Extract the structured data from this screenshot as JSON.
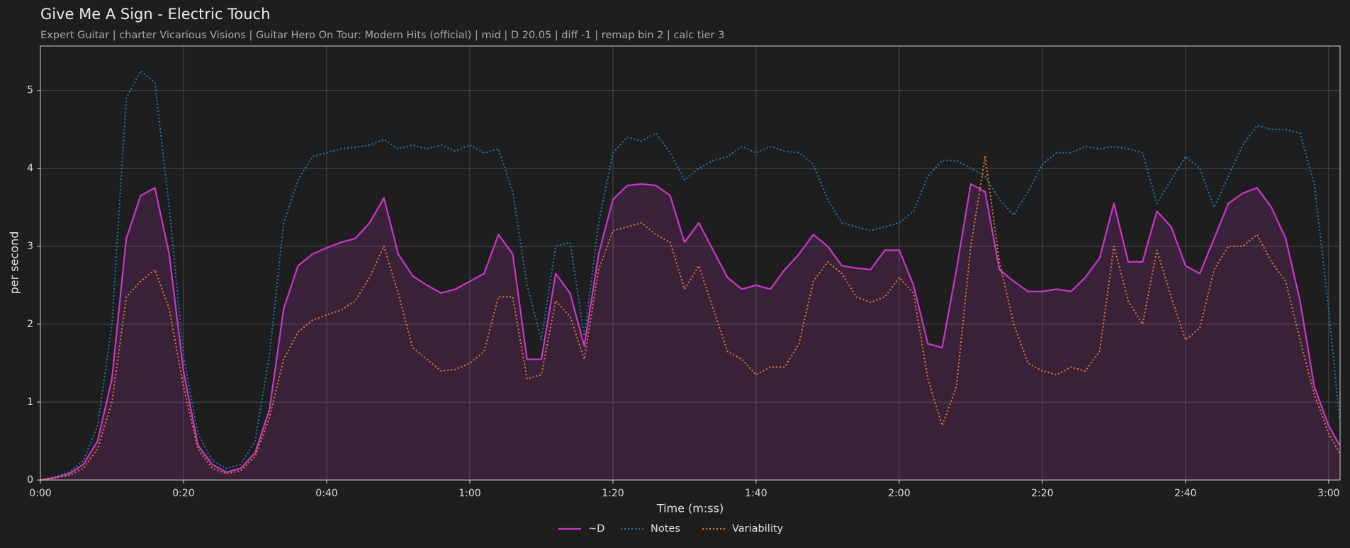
{
  "chart_data": {
    "type": "line",
    "title": "Give Me A Sign - Electric Touch",
    "subtitle": "Expert Guitar  |  charter Vicarious Visions  |  Guitar Hero On Tour: Modern Hits (official)  |  mid  |  D 20.05  |  diff -1  |  remap bin 2  |  calc tier 3",
    "x_label": "Time (m:ss)",
    "y_label": "per second",
    "x": [
      0,
      2,
      4,
      6,
      8,
      10,
      12,
      14,
      16,
      18,
      20,
      22,
      24,
      26,
      28,
      30,
      32,
      34,
      36,
      38,
      40,
      42,
      44,
      46,
      48,
      50,
      52,
      54,
      56,
      58,
      60,
      62,
      64,
      66,
      68,
      70,
      72,
      74,
      76,
      78,
      80,
      82,
      84,
      86,
      88,
      90,
      92,
      94,
      96,
      98,
      100,
      102,
      104,
      106,
      108,
      110,
      112,
      114,
      116,
      118,
      120,
      122,
      124,
      126,
      128,
      130,
      132,
      134,
      136,
      138,
      140,
      142,
      144,
      146,
      148,
      150,
      152,
      154,
      156,
      158,
      160,
      162,
      164,
      166,
      168,
      170,
      172,
      174,
      176,
      178,
      180,
      181.5
    ],
    "series": [
      {
        "name": "~D",
        "color": "#c935c9",
        "style": "solid",
        "fill": true,
        "values": [
          0,
          0.03,
          0.08,
          0.2,
          0.5,
          1.3,
          3.1,
          3.65,
          3.75,
          2.9,
          1.4,
          0.45,
          0.2,
          0.1,
          0.15,
          0.35,
          0.9,
          2.2,
          2.75,
          2.9,
          2.98,
          3.05,
          3.1,
          3.3,
          3.62,
          2.9,
          2.62,
          2.5,
          2.4,
          2.45,
          2.55,
          2.65,
          3.15,
          2.9,
          1.55,
          1.55,
          2.65,
          2.4,
          1.72,
          2.9,
          3.6,
          3.78,
          3.8,
          3.78,
          3.65,
          3.05,
          3.3,
          2.95,
          2.6,
          2.45,
          2.5,
          2.45,
          2.7,
          2.9,
          3.15,
          3.0,
          2.75,
          2.72,
          2.7,
          2.95,
          2.95,
          2.5,
          1.75,
          1.7,
          2.7,
          3.8,
          3.7,
          2.7,
          2.55,
          2.42,
          2.42,
          2.45,
          2.42,
          2.6,
          2.85,
          3.55,
          2.8,
          2.8,
          3.45,
          3.25,
          2.75,
          2.65,
          3.1,
          3.55,
          3.68,
          3.75,
          3.5,
          3.1,
          2.3,
          1.2,
          0.7,
          0.45
        ]
      },
      {
        "name": "Notes",
        "color": "#1f77b4",
        "style": "dotted",
        "fill": false,
        "values": [
          0,
          0.04,
          0.1,
          0.25,
          0.7,
          2.0,
          4.9,
          5.25,
          5.1,
          3.5,
          1.6,
          0.6,
          0.25,
          0.15,
          0.2,
          0.5,
          1.6,
          3.3,
          3.85,
          4.15,
          4.2,
          4.25,
          4.27,
          4.3,
          4.37,
          4.25,
          4.3,
          4.25,
          4.3,
          4.22,
          4.3,
          4.2,
          4.25,
          3.7,
          2.5,
          1.8,
          3.0,
          3.05,
          1.85,
          3.3,
          4.2,
          4.4,
          4.35,
          4.45,
          4.2,
          3.85,
          4.0,
          4.1,
          4.15,
          4.28,
          4.2,
          4.28,
          4.22,
          4.2,
          4.05,
          3.6,
          3.3,
          3.25,
          3.2,
          3.25,
          3.3,
          3.45,
          3.9,
          4.1,
          4.1,
          4.0,
          3.9,
          3.6,
          3.4,
          3.7,
          4.05,
          4.2,
          4.2,
          4.28,
          4.25,
          4.28,
          4.25,
          4.2,
          3.55,
          3.85,
          4.15,
          4.0,
          3.5,
          3.9,
          4.3,
          4.55,
          4.5,
          4.5,
          4.45,
          3.8,
          2.2,
          0.8
        ]
      },
      {
        "name": "Variability",
        "color": "#e8792a",
        "style": "dotted",
        "fill": false,
        "values": [
          0,
          0.03,
          0.06,
          0.15,
          0.4,
          1.0,
          2.35,
          2.55,
          2.7,
          2.2,
          1.2,
          0.4,
          0.15,
          0.08,
          0.12,
          0.3,
          0.8,
          1.55,
          1.9,
          2.05,
          2.12,
          2.18,
          2.3,
          2.6,
          3.0,
          2.4,
          1.7,
          1.55,
          1.4,
          1.42,
          1.5,
          1.65,
          2.35,
          2.35,
          1.3,
          1.35,
          2.3,
          2.1,
          1.55,
          2.7,
          3.2,
          3.25,
          3.3,
          3.15,
          3.05,
          2.45,
          2.75,
          2.2,
          1.65,
          1.55,
          1.35,
          1.45,
          1.45,
          1.75,
          2.55,
          2.8,
          2.65,
          2.35,
          2.28,
          2.35,
          2.6,
          2.4,
          1.3,
          0.7,
          1.2,
          3.0,
          4.15,
          2.8,
          2.0,
          1.5,
          1.4,
          1.35,
          1.45,
          1.4,
          1.65,
          3.0,
          2.3,
          2.0,
          2.95,
          2.35,
          1.8,
          1.95,
          2.7,
          3.0,
          3.0,
          3.15,
          2.8,
          2.55,
          1.8,
          1.1,
          0.6,
          0.35
        ]
      }
    ],
    "xlim": [
      0,
      181.6
    ],
    "xticks": [
      {
        "value": 0,
        "label": "0:00"
      },
      {
        "value": 20,
        "label": "0:20"
      },
      {
        "value": 40,
        "label": "0:40"
      },
      {
        "value": 60,
        "label": "1:00"
      },
      {
        "value": 80,
        "label": "1:20"
      },
      {
        "value": 100,
        "label": "1:40"
      },
      {
        "value": 120,
        "label": "2:00"
      },
      {
        "value": 140,
        "label": "2:20"
      },
      {
        "value": 160,
        "label": "2:40"
      },
      {
        "value": 180,
        "label": "3:00"
      }
    ],
    "ylim": [
      0,
      5.57
    ],
    "yticks": [
      0,
      1,
      2,
      3,
      4,
      5
    ],
    "grid": true,
    "legend": "bottom"
  }
}
